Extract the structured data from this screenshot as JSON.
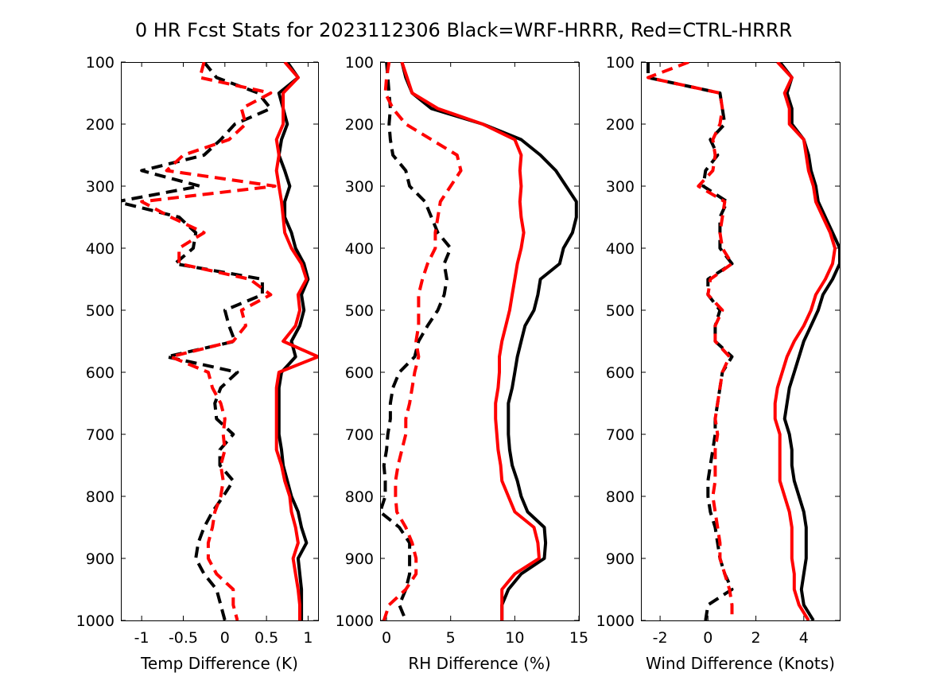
{
  "title": "0 HR Fcst Stats for 2023112306 Black=WRF-HRRR, Red=CTRL-HRRR",
  "colors": {
    "wrf_hrrr": "#000000",
    "ctrl_hrrr": "#ff0000"
  },
  "chart_data": [
    {
      "type": "line",
      "xlabel": "Temp Difference (K)",
      "ylabel": "",
      "xlim": [
        -1.25,
        1.12
      ],
      "ylim": [
        1000,
        100
      ],
      "xticks": [
        -1,
        -0.5,
        0,
        0.5,
        1
      ],
      "xtick_labels": [
        "-1",
        "-0.5",
        "0",
        "0.5",
        "1"
      ],
      "yticks": [
        100,
        200,
        300,
        400,
        500,
        600,
        700,
        800,
        900,
        1000
      ],
      "ytick_labels": [
        "100",
        "200",
        "300",
        "400",
        "500",
        "600",
        "700",
        "800",
        "900",
        "1000"
      ],
      "y": [
        100,
        125,
        150,
        175,
        200,
        225,
        250,
        275,
        300,
        325,
        350,
        375,
        400,
        425,
        450,
        475,
        500,
        525,
        550,
        575,
        600,
        625,
        650,
        675,
        700,
        725,
        750,
        775,
        800,
        825,
        850,
        875,
        900,
        925,
        950,
        975,
        1000
      ],
      "series": [
        {
          "color": "#000000",
          "style": "dashed",
          "values": [
            -0.25,
            -0.1,
            0.4,
            0.55,
            0.12,
            -0.05,
            -0.25,
            -1.0,
            -0.3,
            -1.3,
            -0.55,
            -0.35,
            -0.38,
            -0.6,
            0.45,
            0.45,
            0.0,
            0.05,
            0.12,
            -0.7,
            0.15,
            -0.05,
            -0.12,
            -0.1,
            0.1,
            -0.06,
            -0.06,
            0.1,
            -0.02,
            -0.15,
            -0.25,
            -0.32,
            -0.35,
            -0.25,
            -0.1,
            -0.05,
            0.0
          ]
        },
        {
          "color": "#ff0000",
          "style": "dashed",
          "values": [
            -0.25,
            -0.3,
            0.55,
            0.2,
            0.25,
            0.05,
            -0.5,
            -0.7,
            0.6,
            -1.0,
            -0.65,
            -0.25,
            -0.55,
            -0.55,
            0.3,
            0.55,
            0.2,
            0.25,
            0.1,
            -0.65,
            -0.2,
            -0.15,
            -0.05,
            0.0,
            -0.02,
            0.0,
            -0.05,
            -0.02,
            -0.05,
            -0.12,
            -0.15,
            -0.2,
            -0.2,
            -0.1,
            0.1,
            0.1,
            0.15
          ]
        },
        {
          "color": "#000000",
          "style": "solid",
          "values": [
            0.75,
            0.88,
            0.65,
            0.7,
            0.75,
            0.68,
            0.65,
            0.72,
            0.78,
            0.72,
            0.72,
            0.8,
            0.85,
            0.95,
            1.0,
            0.92,
            0.95,
            0.9,
            0.8,
            0.85,
            0.68,
            0.65,
            0.65,
            0.65,
            0.65,
            0.68,
            0.7,
            0.75,
            0.8,
            0.88,
            0.92,
            0.98,
            0.88,
            0.9,
            0.92,
            0.92,
            0.92
          ]
        },
        {
          "color": "#ff0000",
          "style": "solid",
          "values": [
            0.72,
            0.88,
            0.7,
            0.7,
            0.7,
            0.62,
            0.65,
            0.62,
            0.65,
            0.68,
            0.7,
            0.72,
            0.8,
            0.92,
            0.98,
            0.88,
            0.9,
            0.85,
            0.7,
            1.12,
            0.65,
            0.62,
            0.62,
            0.62,
            0.62,
            0.62,
            0.68,
            0.72,
            0.78,
            0.8,
            0.85,
            0.88,
            0.82,
            0.85,
            0.88,
            0.9,
            0.9
          ]
        }
      ]
    },
    {
      "type": "line",
      "xlabel": "RH Difference (%)",
      "ylabel": "",
      "xlim": [
        -0.5,
        15
      ],
      "ylim": [
        1000,
        100
      ],
      "xticks": [
        0,
        5,
        10,
        15
      ],
      "xtick_labels": [
        "0",
        "5",
        "10",
        "15"
      ],
      "yticks": [
        100,
        200,
        300,
        400,
        500,
        600,
        700,
        800,
        900,
        1000
      ],
      "ytick_labels": [
        "100",
        "200",
        "300",
        "400",
        "500",
        "600",
        "700",
        "800",
        "900",
        "1000"
      ],
      "y": [
        100,
        125,
        150,
        175,
        200,
        225,
        250,
        275,
        300,
        325,
        350,
        375,
        400,
        425,
        450,
        475,
        500,
        525,
        550,
        575,
        600,
        625,
        650,
        675,
        700,
        725,
        750,
        775,
        800,
        825,
        850,
        875,
        900,
        925,
        950,
        975,
        1000
      ],
      "series": [
        {
          "color": "#000000",
          "style": "dashed",
          "values": [
            0.0,
            0.1,
            0.2,
            0.3,
            0.2,
            0.3,
            0.5,
            1.5,
            1.8,
            3.0,
            3.5,
            4.0,
            5.0,
            4.5,
            4.7,
            4.5,
            4.0,
            3.2,
            2.5,
            2.2,
            1.0,
            0.5,
            0.3,
            0.3,
            0.1,
            0.0,
            -0.2,
            -0.1,
            -0.1,
            -0.5,
            1.0,
            1.8,
            1.8,
            1.8,
            1.5,
            1.0,
            1.5
          ]
        },
        {
          "color": "#ff0000",
          "style": "dashed",
          "values": [
            0.2,
            0.0,
            -0.1,
            0.5,
            1.5,
            3.5,
            5.5,
            5.8,
            5.0,
            4.2,
            4.0,
            3.8,
            3.8,
            3.2,
            2.8,
            2.5,
            2.5,
            2.5,
            2.3,
            2.5,
            2.2,
            2.0,
            1.8,
            1.5,
            1.5,
            1.2,
            0.9,
            0.7,
            0.7,
            0.8,
            1.5,
            2.0,
            2.3,
            2.3,
            1.5,
            0.2,
            -0.2
          ]
        },
        {
          "color": "#000000",
          "style": "solid",
          "values": [
            1.2,
            1.5,
            2.0,
            3.5,
            7.5,
            10.5,
            12.0,
            13.2,
            14.0,
            14.8,
            14.8,
            14.5,
            13.8,
            13.5,
            12.0,
            11.8,
            11.5,
            10.8,
            10.5,
            10.2,
            10.0,
            9.8,
            9.5,
            9.5,
            9.5,
            9.6,
            9.8,
            10.2,
            10.5,
            11.0,
            12.3,
            12.4,
            12.3,
            10.5,
            9.5,
            9.0,
            9.0
          ]
        },
        {
          "color": "#ff0000",
          "style": "solid",
          "values": [
            1.2,
            1.6,
            2.0,
            4.0,
            7.5,
            10.0,
            10.5,
            10.4,
            10.5,
            10.4,
            10.5,
            10.7,
            10.5,
            10.2,
            10.0,
            9.8,
            9.6,
            9.3,
            9.0,
            8.8,
            8.8,
            8.7,
            8.5,
            8.5,
            8.6,
            8.7,
            8.9,
            9.0,
            9.5,
            10.0,
            11.5,
            11.8,
            11.9,
            10.0,
            9.0,
            9.0,
            9.0
          ]
        }
      ]
    },
    {
      "type": "line",
      "xlabel": "Wind Difference (Knots)",
      "ylabel": "",
      "xlim": [
        -2.8,
        5.5
      ],
      "ylim": [
        1000,
        100
      ],
      "xticks": [
        -2,
        0,
        2,
        4
      ],
      "xtick_labels": [
        "-2",
        "0",
        "2",
        "4"
      ],
      "yticks": [
        100,
        200,
        300,
        400,
        500,
        600,
        700,
        800,
        900,
        1000
      ],
      "ytick_labels": [
        "100",
        "200",
        "300",
        "400",
        "500",
        "600",
        "700",
        "800",
        "900",
        "1000"
      ],
      "y": [
        100,
        125,
        150,
        175,
        200,
        225,
        250,
        275,
        300,
        325,
        350,
        375,
        400,
        425,
        450,
        475,
        500,
        525,
        550,
        575,
        600,
        625,
        650,
        675,
        700,
        725,
        750,
        775,
        800,
        825,
        850,
        875,
        900,
        925,
        950,
        975,
        1000
      ],
      "series": [
        {
          "color": "#000000",
          "style": "dashed",
          "values": [
            -2.5,
            -2.5,
            0.5,
            0.6,
            0.7,
            0.1,
            0.4,
            -0.1,
            -0.2,
            0.8,
            0.5,
            0.5,
            0.5,
            1.0,
            0.0,
            0.0,
            0.5,
            0.3,
            0.3,
            1.0,
            0.6,
            0.5,
            0.4,
            0.3,
            0.3,
            0.2,
            0.1,
            0.0,
            0.0,
            0.1,
            0.3,
            0.4,
            0.5,
            0.7,
            1.0,
            0.0,
            -0.1
          ]
        },
        {
          "color": "#ff0000",
          "style": "dashed",
          "values": [
            -0.8,
            -2.5,
            0.5,
            0.6,
            0.5,
            0.2,
            0.3,
            0.2,
            -0.4,
            0.7,
            0.6,
            0.5,
            0.6,
            1.0,
            0.1,
            0.0,
            0.6,
            0.3,
            0.3,
            0.9,
            0.6,
            0.5,
            0.4,
            0.3,
            0.4,
            0.3,
            0.3,
            0.3,
            0.2,
            0.3,
            0.4,
            0.5,
            0.5,
            0.7,
            0.9,
            1.0,
            1.0
          ]
        },
        {
          "color": "#000000",
          "style": "solid",
          "values": [
            3.0,
            3.5,
            3.3,
            3.5,
            3.5,
            4.0,
            4.2,
            4.3,
            4.5,
            4.6,
            4.9,
            5.2,
            5.5,
            5.5,
            5.2,
            4.8,
            4.6,
            4.3,
            4.0,
            3.8,
            3.6,
            3.4,
            3.3,
            3.2,
            3.4,
            3.5,
            3.5,
            3.6,
            3.8,
            4.0,
            4.1,
            4.1,
            4.1,
            4.0,
            3.9,
            4.0,
            4.4
          ]
        },
        {
          "color": "#ff0000",
          "style": "solid",
          "values": [
            2.9,
            3.5,
            3.2,
            3.4,
            3.4,
            4.0,
            4.1,
            4.2,
            4.4,
            4.5,
            4.8,
            5.1,
            5.3,
            5.2,
            4.9,
            4.5,
            4.3,
            4.0,
            3.6,
            3.3,
            3.1,
            2.9,
            2.8,
            2.8,
            3.0,
            3.0,
            3.0,
            3.0,
            3.2,
            3.4,
            3.5,
            3.5,
            3.5,
            3.6,
            3.6,
            3.8,
            4.2
          ]
        }
      ]
    }
  ]
}
